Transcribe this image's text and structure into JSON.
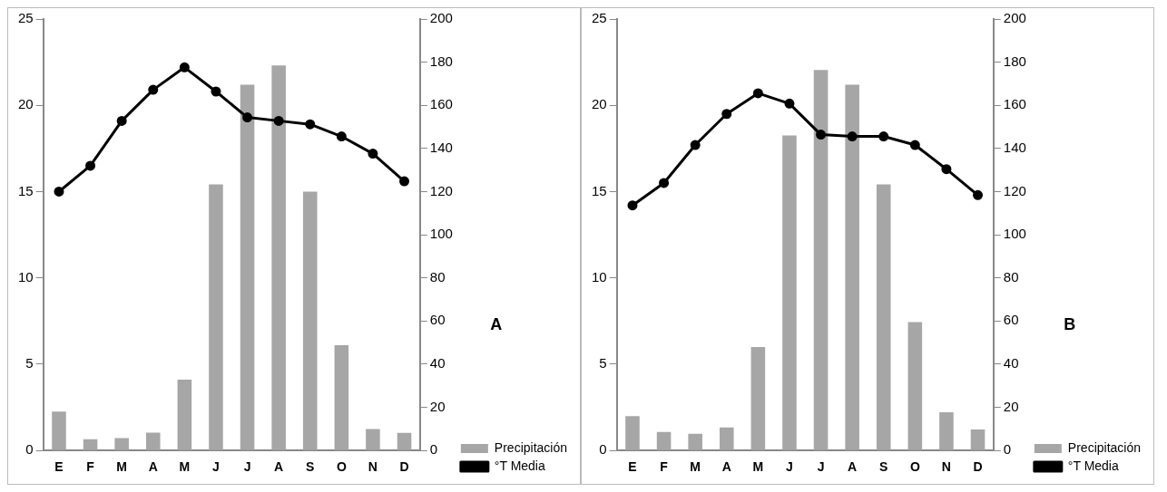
{
  "chart_data": [
    {
      "type": "bar",
      "categories": [
        "E",
        "F",
        "M",
        "A",
        "M",
        "J",
        "J",
        "A",
        "S",
        "O",
        "N",
        "D"
      ],
      "series": [
        {
          "name": "Precipitación",
          "axis": "y2",
          "color": "#a6a6a6",
          "values": [
            18,
            5.2,
            5.8,
            8.3,
            32.8,
            123.4,
            169.6,
            178.5,
            120,
            48.8,
            10,
            8.2
          ]
        },
        {
          "name": "°T Media",
          "type": "line",
          "color": "#000000",
          "values": [
            15.0,
            16.5,
            19.1,
            20.9,
            22.2,
            20.8,
            19.3,
            19.1,
            18.9,
            18.2,
            17.2,
            15.6
          ]
        }
      ],
      "ylim": [
        0,
        25
      ],
      "yticks": [
        0,
        5,
        10,
        15,
        20,
        25
      ],
      "y2lim": [
        0,
        200
      ],
      "y2ticks": [
        0,
        20,
        40,
        60,
        80,
        100,
        120,
        140,
        160,
        180,
        200
      ],
      "grid": false,
      "legend": "bottom right",
      "marker": "circle",
      "line_style": "solid",
      "annotations": [
        "A"
      ]
    },
    {
      "type": "bar",
      "categories": [
        "E",
        "F",
        "M",
        "A",
        "M",
        "J",
        "J",
        "A",
        "S",
        "O",
        "N",
        "D"
      ],
      "series": [
        {
          "name": "Precipitación",
          "axis": "y2",
          "color": "#a6a6a6",
          "values": [
            15.9,
            8.6,
            7.7,
            10.7,
            48,
            146,
            176.4,
            169.6,
            123.4,
            59.5,
            17.7,
            9.7
          ]
        },
        {
          "name": "°T Media",
          "type": "line",
          "color": "#000000",
          "values": [
            14.2,
            15.5,
            17.7,
            19.5,
            20.7,
            20.1,
            18.3,
            18.2,
            18.2,
            17.7,
            16.3,
            14.8
          ]
        }
      ],
      "ylim": [
        0,
        25
      ],
      "yticks": [
        0,
        5,
        10,
        15,
        20,
        25
      ],
      "y2lim": [
        0,
        200
      ],
      "y2ticks": [
        0,
        20,
        40,
        60,
        80,
        100,
        120,
        140,
        160,
        180,
        200
      ],
      "grid": false,
      "legend": "bottom right",
      "marker": "circle",
      "line_style": "solid",
      "annotations": [
        "B"
      ]
    }
  ]
}
